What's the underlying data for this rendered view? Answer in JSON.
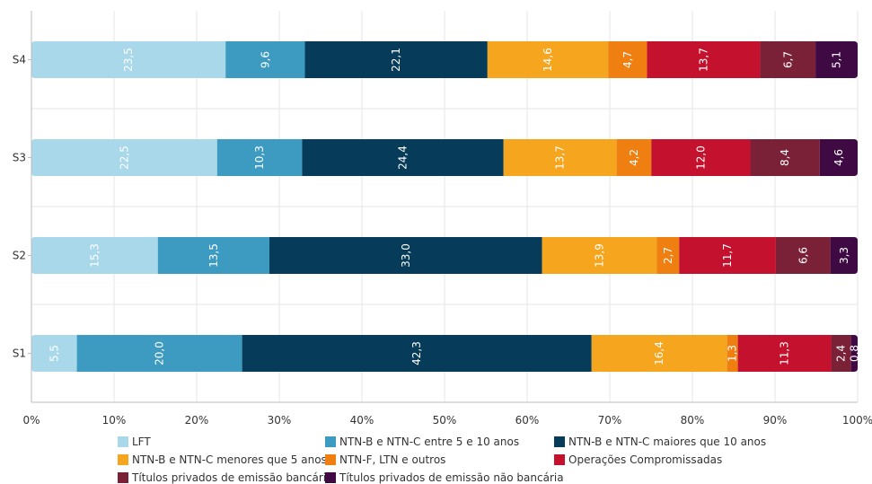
{
  "chart_data": {
    "type": "bar",
    "orientation": "horizontal",
    "stacked": true,
    "categories": [
      "S4",
      "S3",
      "S2",
      "S1"
    ],
    "series": [
      {
        "name": "LFT",
        "color": "#a8d8ea",
        "values": [
          23.5,
          22.5,
          15.3,
          5.5
        ],
        "labels": [
          "23,5",
          "22,5",
          "15,3",
          "5,5"
        ]
      },
      {
        "name": "NTN-B e NTN-C entre 5 e 10 anos",
        "color": "#3d9bc2",
        "values": [
          9.6,
          10.3,
          13.5,
          20.0
        ],
        "labels": [
          "9,6",
          "10,3",
          "13,5",
          "20,0"
        ]
      },
      {
        "name": "NTN-B e NTN-C maiores que 10 anos",
        "color": "#063c5a",
        "values": [
          22.1,
          24.4,
          33.0,
          42.3
        ],
        "labels": [
          "22,1",
          "24,4",
          "33,0",
          "42,3"
        ]
      },
      {
        "name": "NTN-B e NTN-C menores que 5 anos",
        "color": "#f5a51e",
        "values": [
          14.6,
          13.7,
          13.9,
          16.4
        ],
        "labels": [
          "14,6",
          "13,7",
          "13,9",
          "16,4"
        ]
      },
      {
        "name": "NTN-F, LTN e outros",
        "color": "#f07f12",
        "values": [
          4.7,
          4.2,
          2.7,
          1.3
        ],
        "labels": [
          "4,7",
          "4,2",
          "2,7",
          "1,3"
        ]
      },
      {
        "name": "Operações Compromissadas",
        "color": "#c4122e",
        "values": [
          13.7,
          12.0,
          11.7,
          11.3
        ],
        "labels": [
          "13,7",
          "12,0",
          "11,7",
          "11,3"
        ]
      },
      {
        "name": "Títulos privados de emissão bancária",
        "color": "#7a2037",
        "values": [
          6.7,
          8.4,
          6.6,
          2.4
        ],
        "labels": [
          "6,7",
          "8,4",
          "6,6",
          "2,4"
        ]
      },
      {
        "name": "Títulos privados de emissão não bancária",
        "color": "#3f0a43",
        "values": [
          5.1,
          4.6,
          3.3,
          0.8
        ],
        "labels": [
          "5,1",
          "4,6",
          "3,3",
          "0,8"
        ]
      }
    ],
    "xlim": [
      0,
      100
    ],
    "xticks": [
      "0%",
      "10%",
      "20%",
      "30%",
      "40%",
      "50%",
      "60%",
      "70%",
      "80%",
      "90%",
      "100%"
    ],
    "grid": true,
    "legend_position": "bottom",
    "title": "",
    "xlabel": "",
    "ylabel": ""
  }
}
